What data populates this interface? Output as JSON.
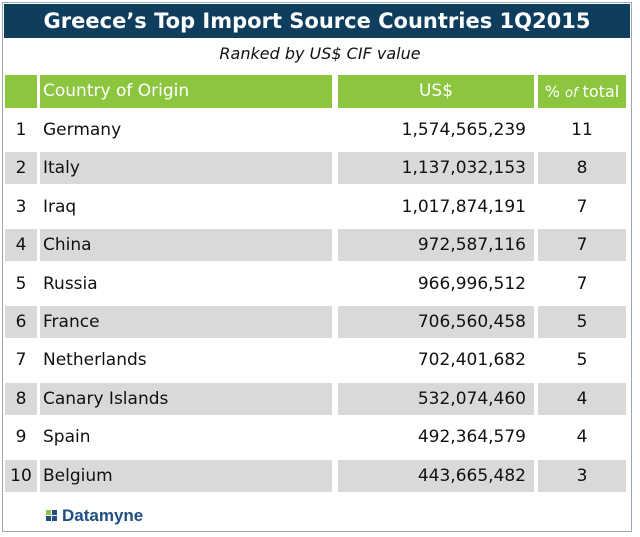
{
  "title": "Greece’s Top Import Source Countries 1Q2015",
  "subtitle": "Ranked by US$ CIF value",
  "chart_data": {
    "type": "table",
    "title": "Greece’s Top Import Source Countries 1Q2015",
    "subtitle": "Ranked by US$ CIF value",
    "columns": [
      "",
      "Country of Origin",
      "US$",
      "% of total"
    ],
    "rows": [
      {
        "rank": "1",
        "country": "Germany",
        "usd": "1,574,565,239",
        "pct": "11"
      },
      {
        "rank": "2",
        "country": "Italy",
        "usd": "1,137,032,153",
        "pct": "8"
      },
      {
        "rank": "3",
        "country": "Iraq",
        "usd": "1,017,874,191",
        "pct": "7"
      },
      {
        "rank": "4",
        "country": "China",
        "usd": "972,587,116",
        "pct": "7"
      },
      {
        "rank": "5",
        "country": "Russia",
        "usd": "966,996,512",
        "pct": "7"
      },
      {
        "rank": "6",
        "country": "France",
        "usd": "706,560,458",
        "pct": "5"
      },
      {
        "rank": "7",
        "country": "Netherlands",
        "usd": "702,401,682",
        "pct": "5"
      },
      {
        "rank": "8",
        "country": "Canary Islands",
        "usd": "532,074,460",
        "pct": "4"
      },
      {
        "rank": "9",
        "country": "Spain",
        "usd": "492,364,579",
        "pct": "4"
      },
      {
        "rank": "10",
        "country": "Belgium",
        "usd": "443,665,482",
        "pct": "3"
      }
    ]
  },
  "header": {
    "country": "Country of Origin",
    "usd": "US$",
    "pct_prefix": "%",
    "pct_of": "of",
    "pct_suffix": "total"
  },
  "colors": {
    "title_bg": "#0e3d5e",
    "header_bg": "#8cc63f",
    "row_shade": "#d9d9d9",
    "logo_blue": "#1f4f82",
    "logo_green": "#8cc63f"
  },
  "logo": {
    "text": "Datamyne",
    "icon": "datamyne-logo-icon"
  }
}
